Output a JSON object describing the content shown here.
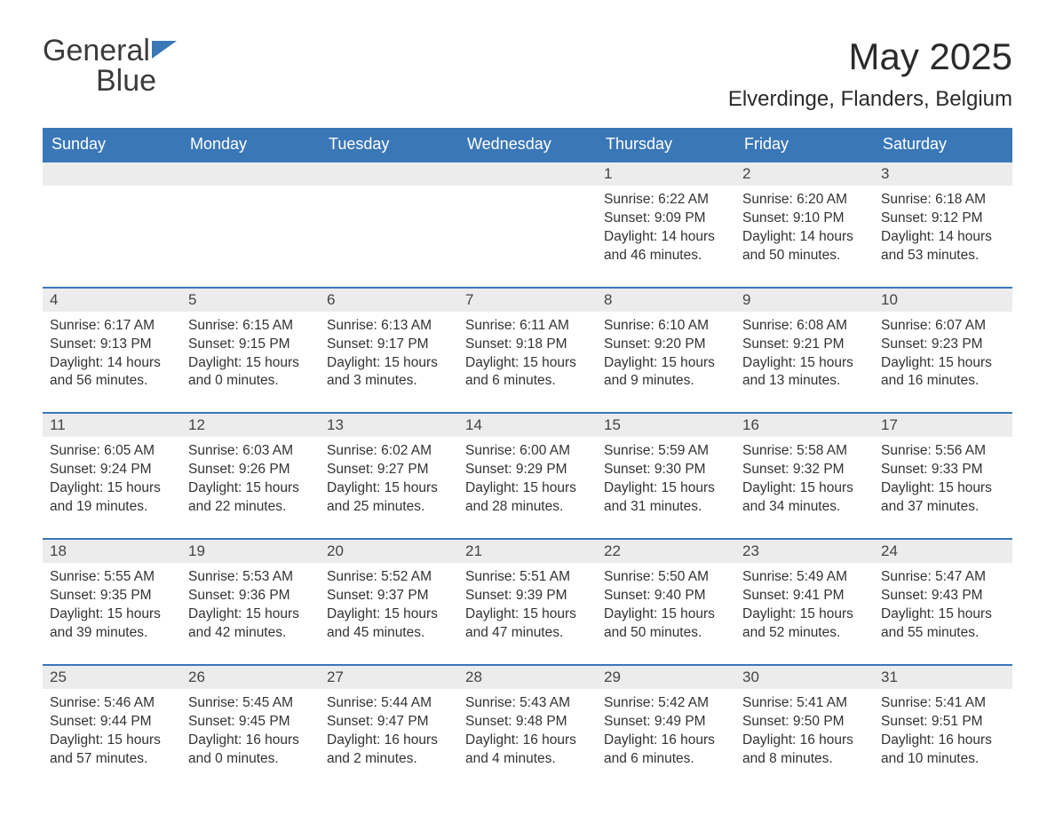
{
  "logo": {
    "text_general": "General",
    "text_blue": "Blue"
  },
  "title": {
    "month": "May 2025",
    "location": "Elverdinge, Flanders, Belgium"
  },
  "colors": {
    "brand_blue": "#3a77b7",
    "header_text": "#ffffff",
    "daynum_bg": "#ececec",
    "body_text": "#333333",
    "background": "#ffffff",
    "row_divider": "#3a77b7"
  },
  "typography": {
    "title_fontsize": 42,
    "location_fontsize": 24,
    "dow_fontsize": 18,
    "daynum_fontsize": 17,
    "body_fontsize": 15.5,
    "logo_fontsize": 34
  },
  "calendar": {
    "type": "calendar-table",
    "columns": [
      "Sunday",
      "Monday",
      "Tuesday",
      "Wednesday",
      "Thursday",
      "Friday",
      "Saturday"
    ],
    "weeks": [
      [
        {
          "day": "",
          "sunrise": "",
          "sunset": "",
          "daylight": ""
        },
        {
          "day": "",
          "sunrise": "",
          "sunset": "",
          "daylight": ""
        },
        {
          "day": "",
          "sunrise": "",
          "sunset": "",
          "daylight": ""
        },
        {
          "day": "",
          "sunrise": "",
          "sunset": "",
          "daylight": ""
        },
        {
          "day": "1",
          "sunrise": "Sunrise: 6:22 AM",
          "sunset": "Sunset: 9:09 PM",
          "daylight": "Daylight: 14 hours and 46 minutes."
        },
        {
          "day": "2",
          "sunrise": "Sunrise: 6:20 AM",
          "sunset": "Sunset: 9:10 PM",
          "daylight": "Daylight: 14 hours and 50 minutes."
        },
        {
          "day": "3",
          "sunrise": "Sunrise: 6:18 AM",
          "sunset": "Sunset: 9:12 PM",
          "daylight": "Daylight: 14 hours and 53 minutes."
        }
      ],
      [
        {
          "day": "4",
          "sunrise": "Sunrise: 6:17 AM",
          "sunset": "Sunset: 9:13 PM",
          "daylight": "Daylight: 14 hours and 56 minutes."
        },
        {
          "day": "5",
          "sunrise": "Sunrise: 6:15 AM",
          "sunset": "Sunset: 9:15 PM",
          "daylight": "Daylight: 15 hours and 0 minutes."
        },
        {
          "day": "6",
          "sunrise": "Sunrise: 6:13 AM",
          "sunset": "Sunset: 9:17 PM",
          "daylight": "Daylight: 15 hours and 3 minutes."
        },
        {
          "day": "7",
          "sunrise": "Sunrise: 6:11 AM",
          "sunset": "Sunset: 9:18 PM",
          "daylight": "Daylight: 15 hours and 6 minutes."
        },
        {
          "day": "8",
          "sunrise": "Sunrise: 6:10 AM",
          "sunset": "Sunset: 9:20 PM",
          "daylight": "Daylight: 15 hours and 9 minutes."
        },
        {
          "day": "9",
          "sunrise": "Sunrise: 6:08 AM",
          "sunset": "Sunset: 9:21 PM",
          "daylight": "Daylight: 15 hours and 13 minutes."
        },
        {
          "day": "10",
          "sunrise": "Sunrise: 6:07 AM",
          "sunset": "Sunset: 9:23 PM",
          "daylight": "Daylight: 15 hours and 16 minutes."
        }
      ],
      [
        {
          "day": "11",
          "sunrise": "Sunrise: 6:05 AM",
          "sunset": "Sunset: 9:24 PM",
          "daylight": "Daylight: 15 hours and 19 minutes."
        },
        {
          "day": "12",
          "sunrise": "Sunrise: 6:03 AM",
          "sunset": "Sunset: 9:26 PM",
          "daylight": "Daylight: 15 hours and 22 minutes."
        },
        {
          "day": "13",
          "sunrise": "Sunrise: 6:02 AM",
          "sunset": "Sunset: 9:27 PM",
          "daylight": "Daylight: 15 hours and 25 minutes."
        },
        {
          "day": "14",
          "sunrise": "Sunrise: 6:00 AM",
          "sunset": "Sunset: 9:29 PM",
          "daylight": "Daylight: 15 hours and 28 minutes."
        },
        {
          "day": "15",
          "sunrise": "Sunrise: 5:59 AM",
          "sunset": "Sunset: 9:30 PM",
          "daylight": "Daylight: 15 hours and 31 minutes."
        },
        {
          "day": "16",
          "sunrise": "Sunrise: 5:58 AM",
          "sunset": "Sunset: 9:32 PM",
          "daylight": "Daylight: 15 hours and 34 minutes."
        },
        {
          "day": "17",
          "sunrise": "Sunrise: 5:56 AM",
          "sunset": "Sunset: 9:33 PM",
          "daylight": "Daylight: 15 hours and 37 minutes."
        }
      ],
      [
        {
          "day": "18",
          "sunrise": "Sunrise: 5:55 AM",
          "sunset": "Sunset: 9:35 PM",
          "daylight": "Daylight: 15 hours and 39 minutes."
        },
        {
          "day": "19",
          "sunrise": "Sunrise: 5:53 AM",
          "sunset": "Sunset: 9:36 PM",
          "daylight": "Daylight: 15 hours and 42 minutes."
        },
        {
          "day": "20",
          "sunrise": "Sunrise: 5:52 AM",
          "sunset": "Sunset: 9:37 PM",
          "daylight": "Daylight: 15 hours and 45 minutes."
        },
        {
          "day": "21",
          "sunrise": "Sunrise: 5:51 AM",
          "sunset": "Sunset: 9:39 PM",
          "daylight": "Daylight: 15 hours and 47 minutes."
        },
        {
          "day": "22",
          "sunrise": "Sunrise: 5:50 AM",
          "sunset": "Sunset: 9:40 PM",
          "daylight": "Daylight: 15 hours and 50 minutes."
        },
        {
          "day": "23",
          "sunrise": "Sunrise: 5:49 AM",
          "sunset": "Sunset: 9:41 PM",
          "daylight": "Daylight: 15 hours and 52 minutes."
        },
        {
          "day": "24",
          "sunrise": "Sunrise: 5:47 AM",
          "sunset": "Sunset: 9:43 PM",
          "daylight": "Daylight: 15 hours and 55 minutes."
        }
      ],
      [
        {
          "day": "25",
          "sunrise": "Sunrise: 5:46 AM",
          "sunset": "Sunset: 9:44 PM",
          "daylight": "Daylight: 15 hours and 57 minutes."
        },
        {
          "day": "26",
          "sunrise": "Sunrise: 5:45 AM",
          "sunset": "Sunset: 9:45 PM",
          "daylight": "Daylight: 16 hours and 0 minutes."
        },
        {
          "day": "27",
          "sunrise": "Sunrise: 5:44 AM",
          "sunset": "Sunset: 9:47 PM",
          "daylight": "Daylight: 16 hours and 2 minutes."
        },
        {
          "day": "28",
          "sunrise": "Sunrise: 5:43 AM",
          "sunset": "Sunset: 9:48 PM",
          "daylight": "Daylight: 16 hours and 4 minutes."
        },
        {
          "day": "29",
          "sunrise": "Sunrise: 5:42 AM",
          "sunset": "Sunset: 9:49 PM",
          "daylight": "Daylight: 16 hours and 6 minutes."
        },
        {
          "day": "30",
          "sunrise": "Sunrise: 5:41 AM",
          "sunset": "Sunset: 9:50 PM",
          "daylight": "Daylight: 16 hours and 8 minutes."
        },
        {
          "day": "31",
          "sunrise": "Sunrise: 5:41 AM",
          "sunset": "Sunset: 9:51 PM",
          "daylight": "Daylight: 16 hours and 10 minutes."
        }
      ]
    ]
  }
}
